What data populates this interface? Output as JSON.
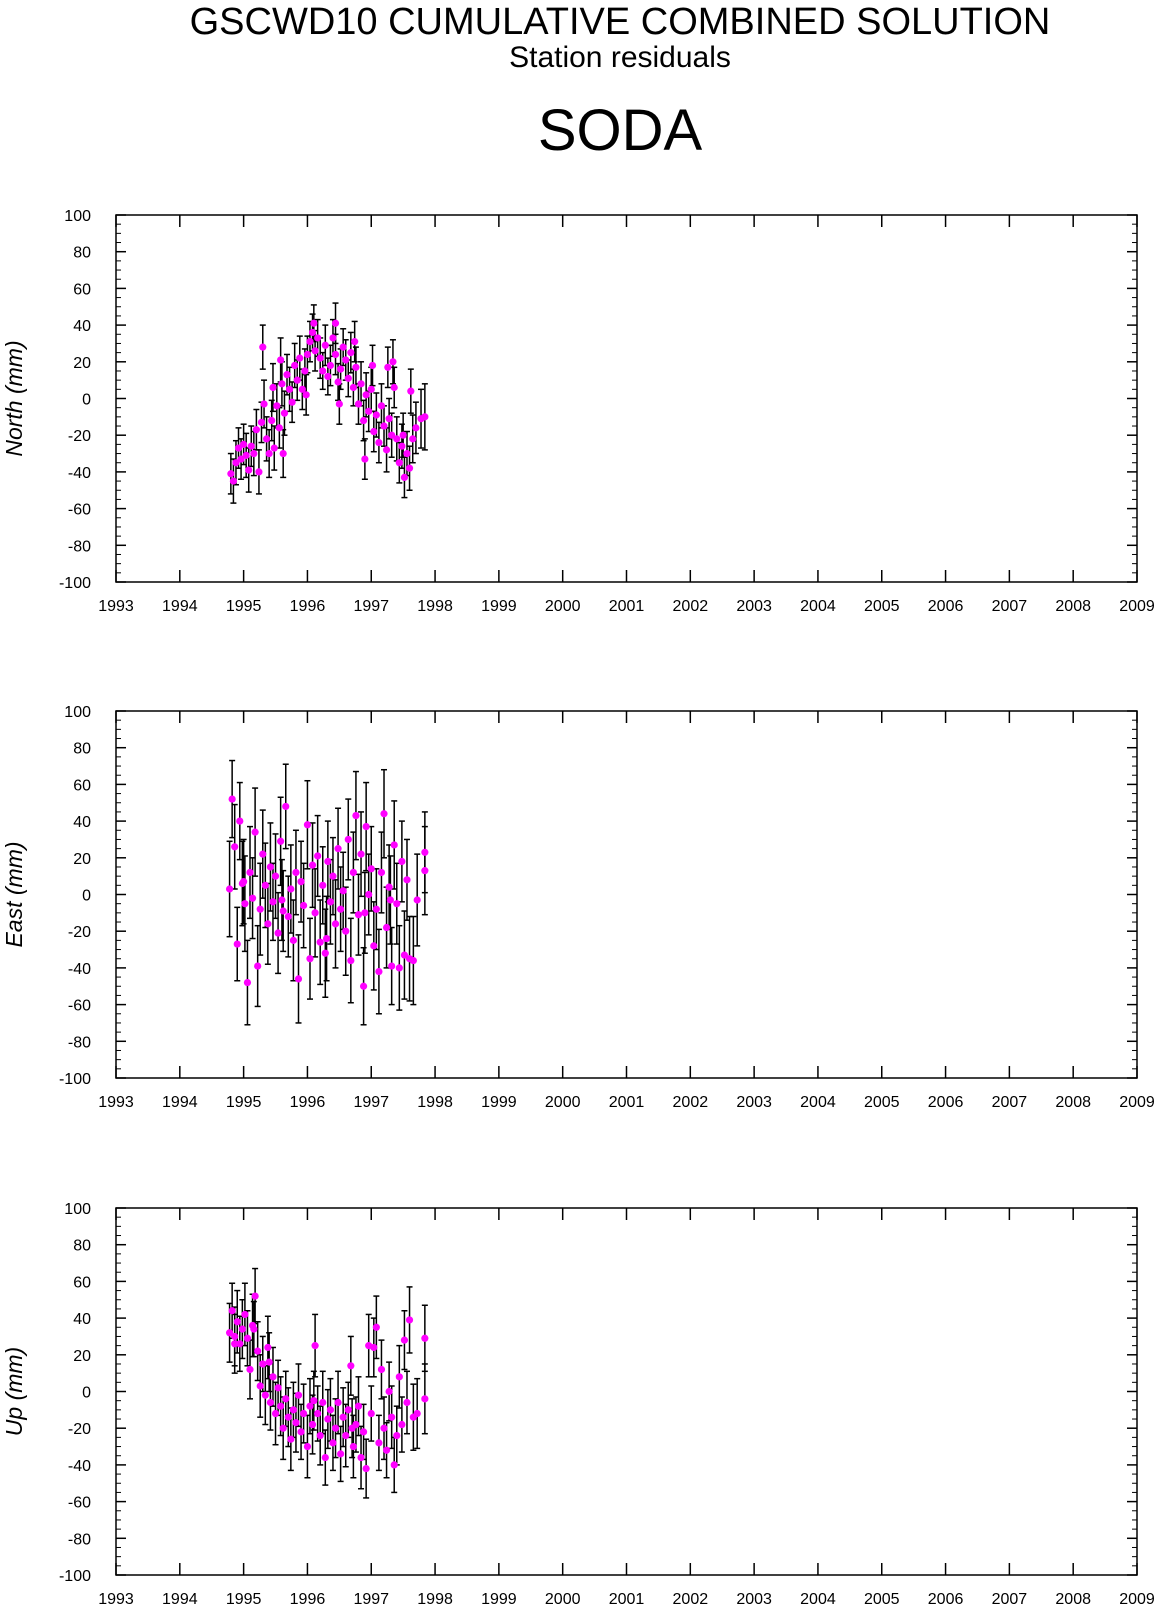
{
  "header": {
    "title": "GSCWD10 CUMULATIVE COMBINED SOLUTION",
    "subtitle": "Station residuals",
    "station": "SODA"
  },
  "colors": {
    "marker": "#ff00ff",
    "error_bar": "#000000",
    "axis": "#000000"
  },
  "chart_data": [
    {
      "type": "scatter",
      "ylabel": "North (mm)",
      "xlim": [
        1993,
        2009
      ],
      "ylim": [
        -100,
        100
      ],
      "x_ticks": [
        1993,
        1994,
        1995,
        1996,
        1997,
        1998,
        1999,
        2000,
        2001,
        2002,
        2003,
        2004,
        2005,
        2006,
        2007,
        2008,
        2009
      ],
      "y_ticks": [
        100,
        80,
        60,
        40,
        20,
        0,
        -20,
        -40,
        -60,
        -80,
        -100
      ],
      "grid": false,
      "points": [
        [
          1994.8,
          -41,
          11
        ],
        [
          1994.84,
          -45,
          12
        ],
        [
          1994.88,
          -35,
          12
        ],
        [
          1994.92,
          -27,
          11
        ],
        [
          1994.96,
          -33,
          11
        ],
        [
          1995.0,
          -25,
          11
        ],
        [
          1995.04,
          -31,
          12
        ],
        [
          1995.08,
          -39,
          12
        ],
        [
          1995.12,
          -26,
          11
        ],
        [
          1995.16,
          -30,
          12
        ],
        [
          1995.2,
          -17,
          11
        ],
        [
          1995.24,
          -40,
          12
        ],
        [
          1995.28,
          -13,
          11
        ],
        [
          1995.32,
          -3,
          13
        ],
        [
          1995.36,
          -22,
          12
        ],
        [
          1995.4,
          -30,
          13
        ],
        [
          1995.44,
          -12,
          11
        ],
        [
          1995.48,
          -27,
          12
        ],
        [
          1995.52,
          -4,
          12
        ],
        [
          1995.56,
          -16,
          11
        ],
        [
          1995.6,
          8,
          12
        ],
        [
          1995.64,
          -8,
          12
        ],
        [
          1995.68,
          13,
          11
        ],
        [
          1995.72,
          5,
          12
        ],
        [
          1995.76,
          -2,
          11
        ],
        [
          1995.8,
          18,
          12
        ],
        [
          1995.84,
          10,
          11
        ],
        [
          1995.88,
          22,
          12
        ],
        [
          1995.92,
          5,
          11
        ],
        [
          1995.96,
          15,
          12
        ],
        [
          1996.0,
          24,
          10
        ],
        [
          1996.04,
          31,
          11
        ],
        [
          1996.08,
          36,
          10
        ],
        [
          1996.12,
          26,
          11
        ],
        [
          1996.16,
          33,
          10
        ],
        [
          1996.2,
          22,
          11
        ],
        [
          1996.24,
          15,
          10
        ],
        [
          1996.28,
          29,
          11
        ],
        [
          1996.32,
          12,
          10
        ],
        [
          1996.36,
          18,
          11
        ],
        [
          1996.4,
          33,
          10
        ],
        [
          1996.44,
          24,
          11
        ],
        [
          1996.48,
          9,
          10
        ],
        [
          1996.52,
          16,
          11
        ],
        [
          1996.56,
          28,
          10
        ],
        [
          1996.6,
          21,
          11
        ],
        [
          1996.64,
          11,
          10
        ],
        [
          1996.68,
          25,
          11
        ],
        [
          1996.72,
          6,
          10
        ],
        [
          1996.76,
          17,
          11
        ],
        [
          1996.8,
          -3,
          11
        ],
        [
          1996.84,
          8,
          12
        ],
        [
          1996.88,
          -12,
          11
        ],
        [
          1996.92,
          2,
          12
        ],
        [
          1996.96,
          -7,
          11
        ],
        [
          1997.0,
          5,
          12
        ],
        [
          1997.04,
          -18,
          11
        ],
        [
          1997.08,
          -9,
          12
        ],
        [
          1997.12,
          -24,
          11
        ],
        [
          1997.16,
          -4,
          12
        ],
        [
          1997.2,
          -15,
          11
        ],
        [
          1997.24,
          -28,
          12
        ],
        [
          1997.28,
          -11,
          11
        ],
        [
          1997.32,
          -20,
          12
        ],
        [
          1997.36,
          6,
          11
        ],
        [
          1997.4,
          -22,
          12
        ],
        [
          1997.44,
          -35,
          11
        ],
        [
          1997.48,
          -26,
          12
        ],
        [
          1997.52,
          -43,
          11
        ],
        [
          1997.56,
          -30,
          12
        ],
        [
          1997.6,
          -38,
          12
        ],
        [
          1997.65,
          -22,
          13
        ],
        [
          1997.7,
          -16,
          14
        ],
        [
          1997.78,
          -11,
          16
        ],
        [
          1997.84,
          -10,
          18
        ],
        [
          1995.3,
          28,
          12
        ],
        [
          1995.46,
          6,
          13
        ],
        [
          1995.62,
          -30,
          13
        ],
        [
          1996.5,
          -3,
          11
        ],
        [
          1996.9,
          -33,
          11
        ],
        [
          1997.02,
          18,
          11
        ],
        [
          1997.26,
          17,
          11
        ],
        [
          1997.34,
          20,
          12
        ],
        [
          1997.5,
          -20,
          12
        ],
        [
          1997.62,
          4,
          12
        ],
        [
          1996.1,
          41,
          10
        ],
        [
          1996.44,
          41,
          11
        ],
        [
          1996.74,
          31,
          11
        ],
        [
          1995.58,
          21,
          12
        ],
        [
          1995.98,
          2,
          11
        ]
      ]
    },
    {
      "type": "scatter",
      "ylabel": "East (mm)",
      "xlim": [
        1993,
        2009
      ],
      "ylim": [
        -100,
        100
      ],
      "x_ticks": [
        1993,
        1994,
        1995,
        1996,
        1997,
        1998,
        1999,
        2000,
        2001,
        2002,
        2003,
        2004,
        2005,
        2006,
        2007,
        2008,
        2009
      ],
      "y_ticks": [
        100,
        80,
        60,
        40,
        20,
        0,
        -20,
        -40,
        -60,
        -80,
        -100
      ],
      "grid": false,
      "points": [
        [
          1994.78,
          3,
          26
        ],
        [
          1994.82,
          52,
          21
        ],
        [
          1994.86,
          26,
          23
        ],
        [
          1994.9,
          -27,
          20
        ],
        [
          1994.94,
          40,
          21
        ],
        [
          1994.98,
          6,
          23
        ],
        [
          1995.02,
          -5,
          26
        ],
        [
          1995.06,
          -48,
          23
        ],
        [
          1995.1,
          12,
          25
        ],
        [
          1995.14,
          -2,
          22
        ],
        [
          1995.18,
          34,
          24
        ],
        [
          1995.22,
          -39,
          22
        ],
        [
          1995.26,
          -8,
          25
        ],
        [
          1995.3,
          22,
          24
        ],
        [
          1995.34,
          5,
          23
        ],
        [
          1995.38,
          -16,
          22
        ],
        [
          1995.42,
          15,
          24
        ],
        [
          1995.46,
          -4,
          21
        ],
        [
          1995.5,
          10,
          23
        ],
        [
          1995.54,
          -21,
          22
        ],
        [
          1995.58,
          29,
          24
        ],
        [
          1995.62,
          -9,
          22
        ],
        [
          1995.66,
          48,
          23
        ],
        [
          1995.7,
          -12,
          22
        ],
        [
          1995.74,
          3,
          24
        ],
        [
          1995.78,
          -25,
          22
        ],
        [
          1995.82,
          12,
          23
        ],
        [
          1995.86,
          -46,
          24
        ],
        [
          1995.9,
          7,
          22
        ],
        [
          1995.94,
          -6,
          23
        ],
        [
          1996.0,
          38,
          24
        ],
        [
          1996.04,
          -35,
          22
        ],
        [
          1996.08,
          16,
          23
        ],
        [
          1996.12,
          -10,
          24
        ],
        [
          1996.16,
          21,
          22
        ],
        [
          1996.2,
          -26,
          23
        ],
        [
          1996.24,
          5,
          21
        ],
        [
          1996.28,
          -32,
          24
        ],
        [
          1996.32,
          18,
          22
        ],
        [
          1996.36,
          -4,
          23
        ],
        [
          1996.4,
          10,
          21
        ],
        [
          1996.44,
          -16,
          24
        ],
        [
          1996.48,
          25,
          22
        ],
        [
          1996.52,
          -8,
          23
        ],
        [
          1996.56,
          2,
          21
        ],
        [
          1996.6,
          -20,
          24
        ],
        [
          1996.64,
          30,
          22
        ],
        [
          1996.68,
          -36,
          23
        ],
        [
          1996.72,
          12,
          22
        ],
        [
          1996.76,
          43,
          24
        ],
        [
          1996.8,
          -11,
          22
        ],
        [
          1996.84,
          22,
          23
        ],
        [
          1996.88,
          -50,
          21
        ],
        [
          1996.92,
          37,
          24
        ],
        [
          1996.96,
          0,
          22
        ],
        [
          1997.0,
          14,
          23
        ],
        [
          1997.04,
          -28,
          24
        ],
        [
          1997.08,
          -8,
          22
        ],
        [
          1997.12,
          -42,
          23
        ],
        [
          1997.16,
          12,
          22
        ],
        [
          1997.2,
          44,
          24
        ],
        [
          1997.24,
          -18,
          22
        ],
        [
          1997.28,
          4,
          23
        ],
        [
          1997.32,
          -39,
          21
        ],
        [
          1997.36,
          27,
          24
        ],
        [
          1997.4,
          -5,
          22
        ],
        [
          1997.44,
          -40,
          23
        ],
        [
          1997.48,
          18,
          22
        ],
        [
          1997.52,
          -33,
          24
        ],
        [
          1997.56,
          8,
          22
        ],
        [
          1997.6,
          -35,
          23
        ],
        [
          1997.66,
          -36,
          24
        ],
        [
          1997.72,
          -3,
          25
        ],
        [
          1997.84,
          23,
          22
        ],
        [
          1997.84,
          13,
          24
        ],
        [
          1995.0,
          7,
          23
        ],
        [
          1995.6,
          -3,
          22
        ],
        [
          1996.3,
          -24,
          23
        ],
        [
          1996.9,
          -10,
          22
        ],
        [
          1997.3,
          -3,
          24
        ]
      ]
    },
    {
      "type": "scatter",
      "ylabel": "Up (mm)",
      "xlim": [
        1993,
        2009
      ],
      "ylim": [
        -100,
        100
      ],
      "x_ticks": [
        1993,
        1994,
        1995,
        1996,
        1997,
        1998,
        1999,
        2000,
        2001,
        2002,
        2003,
        2004,
        2005,
        2006,
        2007,
        2008,
        2009
      ],
      "y_ticks": [
        100,
        80,
        60,
        40,
        20,
        0,
        -20,
        -40,
        -60,
        -80,
        -100
      ],
      "grid": false,
      "points": [
        [
          1994.78,
          32,
          16
        ],
        [
          1994.82,
          44,
          15
        ],
        [
          1994.86,
          30,
          16
        ],
        [
          1994.9,
          38,
          17
        ],
        [
          1994.94,
          26,
          15
        ],
        [
          1994.98,
          34,
          16
        ],
        [
          1995.02,
          42,
          17
        ],
        [
          1995.06,
          29,
          15
        ],
        [
          1995.1,
          12,
          16
        ],
        [
          1995.14,
          36,
          17
        ],
        [
          1995.18,
          52,
          15
        ],
        [
          1995.22,
          22,
          16
        ],
        [
          1995.26,
          3,
          17
        ],
        [
          1995.3,
          15,
          15
        ],
        [
          1995.34,
          -2,
          16
        ],
        [
          1995.38,
          24,
          17
        ],
        [
          1995.42,
          -6,
          15
        ],
        [
          1995.46,
          8,
          16
        ],
        [
          1995.5,
          -12,
          17
        ],
        [
          1995.54,
          2,
          15
        ],
        [
          1995.58,
          -8,
          16
        ],
        [
          1995.62,
          -20,
          17
        ],
        [
          1995.66,
          -4,
          15
        ],
        [
          1995.7,
          -14,
          16
        ],
        [
          1995.74,
          -26,
          17
        ],
        [
          1995.78,
          -10,
          15
        ],
        [
          1995.82,
          -17,
          16
        ],
        [
          1995.86,
          -2,
          17
        ],
        [
          1995.9,
          -22,
          15
        ],
        [
          1995.94,
          -12,
          16
        ],
        [
          1996.0,
          -30,
          17
        ],
        [
          1996.04,
          -8,
          15
        ],
        [
          1996.08,
          -18,
          16
        ],
        [
          1996.12,
          25,
          17
        ],
        [
          1996.16,
          -12,
          15
        ],
        [
          1996.2,
          -24,
          16
        ],
        [
          1996.24,
          -6,
          17
        ],
        [
          1996.28,
          -36,
          15
        ],
        [
          1996.32,
          -15,
          16
        ],
        [
          1996.36,
          -10,
          17
        ],
        [
          1996.4,
          -28,
          15
        ],
        [
          1996.44,
          -20,
          16
        ],
        [
          1996.48,
          -6,
          17
        ],
        [
          1996.52,
          -34,
          15
        ],
        [
          1996.56,
          -14,
          16
        ],
        [
          1996.6,
          -24,
          17
        ],
        [
          1996.64,
          -10,
          15
        ],
        [
          1996.68,
          14,
          16
        ],
        [
          1996.72,
          -30,
          17
        ],
        [
          1996.76,
          -18,
          15
        ],
        [
          1996.8,
          -8,
          16
        ],
        [
          1996.84,
          -36,
          17
        ],
        [
          1996.88,
          -22,
          15
        ],
        [
          1996.92,
          -42,
          16
        ],
        [
          1996.96,
          25,
          17
        ],
        [
          1997.0,
          -12,
          15
        ],
        [
          1997.04,
          24,
          16
        ],
        [
          1997.08,
          35,
          17
        ],
        [
          1997.12,
          -28,
          15
        ],
        [
          1997.16,
          12,
          16
        ],
        [
          1997.2,
          -20,
          17
        ],
        [
          1997.24,
          -32,
          15
        ],
        [
          1997.28,
          0,
          16
        ],
        [
          1997.32,
          -14,
          17
        ],
        [
          1997.36,
          -40,
          15
        ],
        [
          1997.4,
          -24,
          16
        ],
        [
          1997.44,
          8,
          17
        ],
        [
          1997.48,
          -18,
          15
        ],
        [
          1997.52,
          28,
          16
        ],
        [
          1997.56,
          -6,
          17
        ],
        [
          1997.6,
          39,
          18
        ],
        [
          1997.66,
          -14,
          18
        ],
        [
          1997.72,
          -12,
          19
        ],
        [
          1997.84,
          29,
          18
        ],
        [
          1997.84,
          -4,
          19
        ],
        [
          1994.86,
          26,
          16
        ],
        [
          1995.16,
          34,
          15
        ],
        [
          1995.4,
          16,
          16
        ],
        [
          1996.1,
          -5,
          16
        ],
        [
          1996.7,
          -20,
          16
        ]
      ]
    }
  ]
}
